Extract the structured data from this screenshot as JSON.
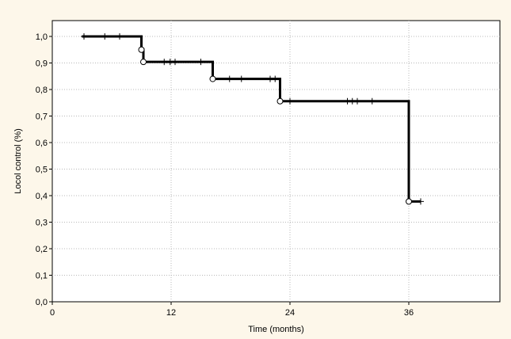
{
  "colors": {
    "background": "#fdf7ea",
    "plot_area": "#ffffff",
    "line": "#000000",
    "grid": "#b8b8b8"
  },
  "chart_data": {
    "type": "line",
    "subtype": "kaplan-meier step curve",
    "title": "",
    "xlabel": "Time (months)",
    "ylabel": "Locol control (%)",
    "xlim": [
      0,
      45
    ],
    "ylim": [
      0,
      1.05
    ],
    "x_ticks": [
      0,
      12,
      24,
      36
    ],
    "x_tick_labels": [
      "0",
      "12",
      "24",
      "36"
    ],
    "y_ticks": [
      0,
      0.1,
      0.2,
      0.3,
      0.4,
      0.5,
      0.6,
      0.7,
      0.8,
      0.9,
      1.0
    ],
    "y_tick_labels": [
      "0,0",
      "0,1",
      "0,2",
      "0,3",
      "0,4",
      "0,5",
      "0,6",
      "0,7",
      "0,8",
      "0,9",
      "1,0"
    ],
    "grid": true,
    "legend": "none",
    "step_points": [
      {
        "x": 3,
        "y": 1.0
      },
      {
        "x": 9,
        "y": 0.95
      },
      {
        "x": 9.2,
        "y": 0.904
      },
      {
        "x": 16.2,
        "y": 0.84
      },
      {
        "x": 23,
        "y": 0.756
      },
      {
        "x": 36,
        "y": 0.378
      }
    ],
    "curve_end": {
      "x": 37.2,
      "y": 0.378
    },
    "event_points": [
      {
        "x": 9,
        "y": 0.95
      },
      {
        "x": 9.2,
        "y": 0.904
      },
      {
        "x": 16.2,
        "y": 0.84
      },
      {
        "x": 23,
        "y": 0.756
      },
      {
        "x": 36,
        "y": 0.378
      }
    ],
    "censored_points": [
      {
        "x": 3.2,
        "y": 1.0
      },
      {
        "x": 5.3,
        "y": 1.0
      },
      {
        "x": 6.8,
        "y": 1.0
      },
      {
        "x": 11.3,
        "y": 0.904
      },
      {
        "x": 11.9,
        "y": 0.904
      },
      {
        "x": 12.4,
        "y": 0.904
      },
      {
        "x": 15.0,
        "y": 0.904
      },
      {
        "x": 17.9,
        "y": 0.84
      },
      {
        "x": 19.1,
        "y": 0.84
      },
      {
        "x": 22.0,
        "y": 0.84
      },
      {
        "x": 22.5,
        "y": 0.84
      },
      {
        "x": 24.0,
        "y": 0.756
      },
      {
        "x": 29.8,
        "y": 0.756
      },
      {
        "x": 30.3,
        "y": 0.756
      },
      {
        "x": 30.8,
        "y": 0.756
      },
      {
        "x": 32.3,
        "y": 0.756
      },
      {
        "x": 37.2,
        "y": 0.378
      }
    ]
  }
}
